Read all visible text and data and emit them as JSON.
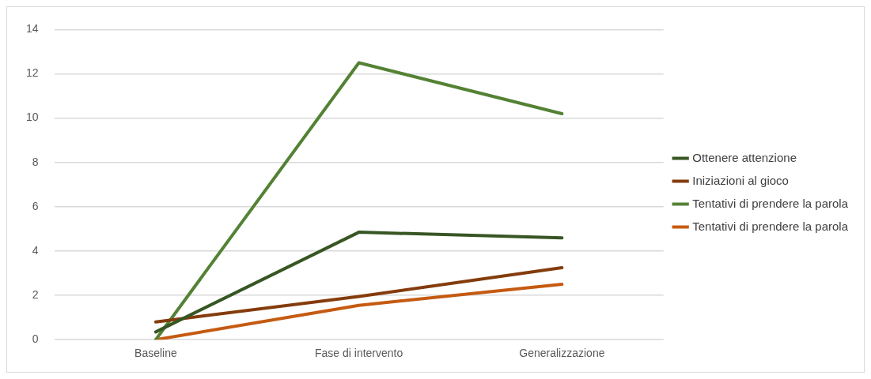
{
  "chart_data": {
    "type": "line",
    "categories": [
      "Baseline",
      "Fase di intervento",
      "Generalizzazione"
    ],
    "series": [
      {
        "name": "Ottenere attenzione",
        "color": "#375623",
        "values": [
          0.35,
          4.85,
          4.6
        ]
      },
      {
        "name": "Iniziazioni al gioco",
        "color": "#843c0c",
        "values": [
          0.8,
          1.95,
          3.25
        ]
      },
      {
        "name": "Tentativi di prendere la parola",
        "color": "#548235",
        "values": [
          0,
          12.5,
          10.2
        ]
      },
      {
        "name": "Tentativi di prendere la parola",
        "color": "#c55a11",
        "values": [
          0,
          1.55,
          2.5
        ]
      }
    ],
    "ylim": [
      0,
      14
    ],
    "yticks": [
      0,
      2,
      4,
      6,
      8,
      10,
      12,
      14
    ],
    "grid": "y",
    "legend": "right",
    "marker": "none",
    "line_style": "solid"
  }
}
